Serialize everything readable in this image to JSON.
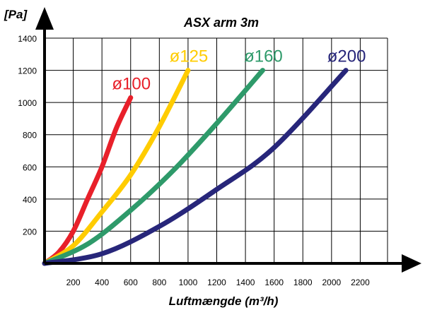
{
  "chart_data": {
    "type": "line",
    "title": "ASX arm 3m",
    "xlabel": "Luftmængde (m³/h)",
    "ylabel": "[Pa]",
    "xlim": [
      0,
      2400
    ],
    "ylim": [
      0,
      1400
    ],
    "x_ticks": [
      200,
      400,
      600,
      800,
      1000,
      1200,
      1400,
      1600,
      1800,
      2000,
      2200
    ],
    "y_ticks": [
      200,
      400,
      600,
      800,
      1000,
      1200,
      1400
    ],
    "grid": true,
    "series": [
      {
        "name": "ø100",
        "color": "#e8202a",
        "x": [
          0,
          100,
          200,
          300,
          400,
          500,
          600
        ],
        "y": [
          0,
          70,
          200,
          400,
          600,
          840,
          1030
        ]
      },
      {
        "name": "ø125",
        "color": "#ffcc00",
        "x": [
          0,
          200,
          400,
          600,
          800,
          1000
        ],
        "y": [
          0,
          110,
          320,
          550,
          850,
          1200
        ]
      },
      {
        "name": "ø160",
        "color": "#2e9a6a",
        "x": [
          0,
          300,
          600,
          900,
          1200,
          1520
        ],
        "y": [
          0,
          120,
          330,
          580,
          870,
          1200
        ]
      },
      {
        "name": "ø200",
        "color": "#27267a",
        "x": [
          0,
          400,
          800,
          1200,
          1600,
          2100
        ],
        "y": [
          0,
          60,
          230,
          460,
          720,
          1200
        ]
      }
    ]
  }
}
